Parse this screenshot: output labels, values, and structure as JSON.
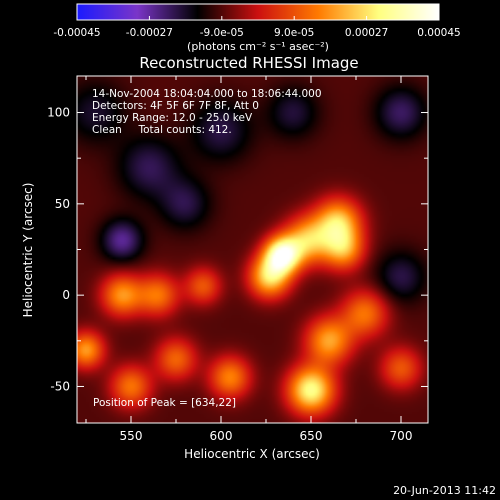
{
  "chart_data": {
    "type": "heatmap",
    "title": "Reconstructed RHESSI Image",
    "xlabel": "Heliocentric X (arcsec)",
    "ylabel": "Heliocentric Y (arcsec)",
    "xlim": [
      520,
      715
    ],
    "ylim": [
      -70,
      120
    ],
    "x_ticks": [
      550,
      600,
      650,
      700
    ],
    "y_ticks": [
      -50,
      0,
      50,
      100
    ],
    "colorbar": {
      "range": [
        -0.00045,
        0.00045
      ],
      "ticks": [
        -0.00045,
        -0.00027,
        -9e-05,
        9e-05,
        0.00027,
        0.00045
      ],
      "tick_labels": [
        "-0.00045",
        "-0.00027",
        "-9.0e-05",
        "9.0e-05",
        "0.00027",
        "0.00045"
      ],
      "unit_label": "(photons cm⁻² s⁻¹ asec⁻²)",
      "colors": [
        "#1a1aff",
        "#7a35c8",
        "#000000",
        "#cc1010",
        "#ff7a00",
        "#ffff80",
        "#ffffff"
      ]
    },
    "annotations": [
      "14-Nov-2004 18:04:04.000 to 18:06:44.000",
      "Detectors: 4F 5F 6F 7F 8F, Att 0",
      "Energy Range: 12.0 - 25.0 keV",
      "Clean     Total counts: 412.",
      "Position of Peak = [634,22]"
    ],
    "peak": {
      "x": 634,
      "y": 22
    },
    "sources": [
      {
        "x": 634,
        "y": 22,
        "value": 0.00045,
        "sigma": 7
      },
      {
        "x": 627,
        "y": 10,
        "value": 0.00032,
        "sigma": 8
      },
      {
        "x": 648,
        "y": 30,
        "value": 0.00028,
        "sigma": 9
      },
      {
        "x": 665,
        "y": 40,
        "value": 0.0003,
        "sigma": 9
      },
      {
        "x": 668,
        "y": 25,
        "value": 0.00024,
        "sigma": 8
      },
      {
        "x": 650,
        "y": -52,
        "value": 0.00038,
        "sigma": 9
      },
      {
        "x": 660,
        "y": -25,
        "value": 0.00026,
        "sigma": 9
      },
      {
        "x": 680,
        "y": -10,
        "value": 0.0002,
        "sigma": 9
      },
      {
        "x": 605,
        "y": -45,
        "value": 0.00022,
        "sigma": 8
      },
      {
        "x": 545,
        "y": 0,
        "value": 0.00024,
        "sigma": 8
      },
      {
        "x": 565,
        "y": 0,
        "value": 0.0002,
        "sigma": 8
      },
      {
        "x": 525,
        "y": -30,
        "value": 0.00025,
        "sigma": 7
      },
      {
        "x": 550,
        "y": -50,
        "value": 0.0002,
        "sigma": 8
      },
      {
        "x": 575,
        "y": -35,
        "value": 0.00018,
        "sigma": 8
      },
      {
        "x": 590,
        "y": 5,
        "value": 0.00016,
        "sigma": 7
      },
      {
        "x": 700,
        "y": -40,
        "value": 0.00016,
        "sigma": 8
      },
      {
        "x": 700,
        "y": 100,
        "value": -0.00016,
        "sigma": 10
      },
      {
        "x": 560,
        "y": 70,
        "value": -0.00015,
        "sigma": 12
      },
      {
        "x": 600,
        "y": 90,
        "value": -0.00014,
        "sigma": 12
      },
      {
        "x": 545,
        "y": 30,
        "value": -0.0002,
        "sigma": 8
      },
      {
        "x": 580,
        "y": 50,
        "value": -0.00014,
        "sigma": 10
      },
      {
        "x": 700,
        "y": 10,
        "value": -0.00014,
        "sigma": 10
      },
      {
        "x": 530,
        "y": 100,
        "value": -0.00012,
        "sigma": 12
      },
      {
        "x": 640,
        "y": 100,
        "value": -0.00013,
        "sigma": 10
      }
    ]
  },
  "footer": {
    "date": "20-Jun-2013 11:42"
  }
}
